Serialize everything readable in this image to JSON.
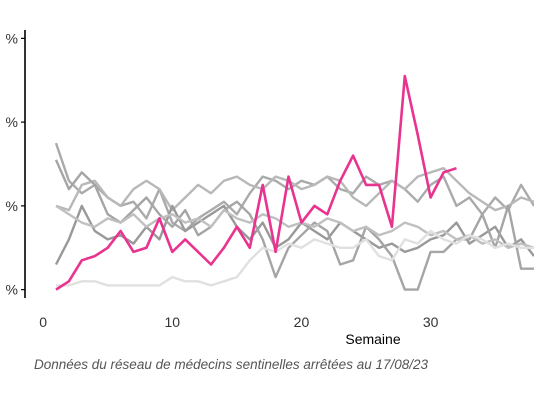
{
  "chart_data": {
    "type": "line",
    "title": "",
    "xlabel": "Semaine",
    "ylabel": "",
    "xlim": [
      -1.4,
      38
    ],
    "ylim": [
      -0.2,
      6.2
    ],
    "x_ticks": [
      0,
      10,
      20,
      30
    ],
    "y_ticks": [
      0,
      2,
      4,
      6
    ],
    "y_tick_labels": [
      "%",
      "%",
      "%",
      "%"
    ],
    "series": [
      {
        "color": "#aaaaaa",
        "x": [
          1,
          2,
          3,
          4,
          5,
          6,
          7,
          8,
          9,
          10,
          11,
          12,
          13,
          14,
          15,
          16,
          17,
          18,
          19,
          20,
          21,
          22,
          23,
          24,
          25,
          26,
          27,
          28,
          29,
          30,
          31,
          32,
          33,
          34,
          35,
          36,
          37,
          38
        ],
        "y": [
          3.5,
          2.6,
          2.3,
          2.5,
          2.2,
          2.0,
          2.1,
          1.7,
          2.4,
          1.6,
          1.4,
          1.7,
          1.9,
          2.1,
          1.8,
          2.3,
          2.7,
          2.6,
          2.4,
          2.6,
          2.5,
          2.7,
          2.4,
          2.3,
          2.7,
          2.5,
          2.6,
          2.4,
          2.1,
          2.5,
          2.7,
          2.0,
          2.2,
          1.8,
          2.2,
          1.9,
          2.5,
          2.0
        ]
      },
      {
        "color": "#b8b8b8",
        "x": [
          1,
          2,
          3,
          4,
          5,
          6,
          7,
          8,
          9,
          10,
          11,
          12,
          13,
          14,
          15,
          16,
          17,
          18,
          19,
          20,
          21,
          22,
          23,
          24,
          25,
          26,
          27,
          28,
          29,
          30,
          31,
          32,
          33,
          34,
          35,
          36,
          37,
          38
        ],
        "y": [
          2.0,
          1.9,
          2.5,
          2.6,
          2.2,
          2.0,
          2.4,
          2.6,
          2.4,
          1.9,
          2.2,
          2.5,
          2.3,
          2.6,
          2.7,
          2.5,
          2.4,
          2.7,
          2.6,
          2.4,
          2.5,
          2.7,
          2.6,
          2.2,
          2.0,
          2.3,
          2.6,
          2.4,
          2.7,
          2.8,
          2.9,
          2.6,
          2.3,
          2.1,
          1.9,
          2.0,
          2.2,
          2.1
        ]
      },
      {
        "color": "#999999",
        "x": [
          1,
          2,
          3,
          4,
          5,
          6,
          7,
          8,
          9,
          10,
          11,
          12,
          13,
          14,
          15,
          16,
          17,
          18,
          19,
          20,
          21,
          22,
          23,
          24,
          25,
          26,
          27,
          28,
          29,
          30,
          31,
          32,
          33,
          34,
          35,
          36,
          37,
          38
        ],
        "y": [
          0.6,
          1.2,
          2.0,
          1.4,
          1.2,
          1.3,
          1.1,
          1.5,
          1.2,
          2.0,
          1.4,
          1.6,
          1.8,
          2.0,
          1.5,
          1.2,
          1.6,
          1.0,
          1.2,
          1.6,
          1.4,
          1.2,
          1.6,
          1.4,
          1.2,
          1.0,
          1.1,
          0.9,
          1.0,
          1.2,
          1.3,
          1.6,
          1.1,
          1.3,
          1.5,
          1.0,
          1.2,
          0.8
        ]
      },
      {
        "color": "#a5a5a5",
        "x": [
          1,
          2,
          3,
          4,
          5,
          6,
          7,
          8,
          9,
          10,
          11,
          12,
          13,
          14,
          15,
          16,
          17,
          18,
          19,
          20,
          21,
          22,
          23,
          24,
          25,
          26,
          27,
          28,
          29,
          30,
          31,
          32,
          33,
          34,
          35,
          36,
          37,
          38
        ],
        "y": [
          3.1,
          2.4,
          2.8,
          2.5,
          1.8,
          1.6,
          1.9,
          2.2,
          1.8,
          1.5,
          1.9,
          1.3,
          1.5,
          1.9,
          2.1,
          1.8,
          1.2,
          0.3,
          1.0,
          1.3,
          1.6,
          1.4,
          0.6,
          0.7,
          1.5,
          1.2,
          0.8,
          0.0,
          0.0,
          0.9,
          0.9,
          1.2,
          1.2,
          1.8,
          1.0,
          2.0,
          0.5,
          0.5
        ]
      },
      {
        "color": "#c0c0c0",
        "x": [
          1,
          2,
          3,
          4,
          5,
          6,
          7,
          8,
          9,
          10,
          11,
          12,
          13,
          14,
          15,
          16,
          17,
          18,
          19,
          20,
          21,
          22,
          23,
          24,
          25,
          26,
          27,
          28,
          29,
          30,
          31,
          32,
          33,
          34,
          35,
          36,
          37,
          38
        ],
        "y": [
          2.0,
          1.8,
          1.6,
          1.5,
          1.7,
          1.6,
          1.8,
          1.5,
          1.7,
          1.8,
          1.6,
          1.7,
          1.5,
          1.9,
          1.7,
          1.6,
          1.8,
          1.7,
          1.5,
          1.6,
          1.5,
          1.7,
          1.6,
          1.4,
          1.5,
          1.3,
          1.4,
          1.6,
          1.5,
          1.3,
          1.4,
          1.2,
          1.3,
          1.1,
          1.2,
          1.0,
          1.1,
          1.0
        ]
      },
      {
        "color": "#e0e0e0",
        "x": [
          1,
          2,
          3,
          4,
          5,
          6,
          7,
          8,
          9,
          10,
          11,
          12,
          13,
          14,
          15,
          16,
          17,
          18,
          19,
          20,
          21,
          22,
          23,
          24,
          25,
          26,
          27,
          28,
          29,
          30,
          31,
          32,
          33,
          34,
          35,
          36,
          37,
          38
        ],
        "y": [
          0.1,
          0.1,
          0.2,
          0.2,
          0.1,
          0.1,
          0.1,
          0.1,
          0.1,
          0.3,
          0.2,
          0.2,
          0.1,
          0.2,
          0.3,
          0.7,
          1.0,
          0.9,
          1.1,
          1.0,
          1.2,
          1.1,
          1.0,
          1.0,
          1.2,
          0.8,
          0.7,
          1.2,
          1.1,
          1.4,
          1.2,
          1.1,
          1.3,
          1.2,
          1.0,
          1.1,
          1.0,
          1.0
        ]
      },
      {
        "color": "#e8338f",
        "x": [
          1,
          2,
          3,
          4,
          5,
          6,
          7,
          8,
          9,
          10,
          11,
          12,
          13,
          14,
          15,
          16,
          17,
          18,
          19,
          20,
          21,
          22,
          23,
          24,
          25,
          26,
          27,
          28,
          29,
          30,
          31,
          32
        ],
        "y": [
          0.0,
          0.2,
          0.7,
          0.8,
          1.0,
          1.4,
          0.9,
          1.0,
          1.7,
          0.9,
          1.2,
          0.9,
          0.6,
          1.0,
          1.5,
          1.0,
          2.5,
          0.9,
          2.7,
          1.6,
          2.0,
          1.8,
          2.6,
          3.2,
          2.5,
          2.5,
          1.5,
          5.1,
          3.7,
          2.2,
          2.8,
          2.9
        ]
      }
    ]
  },
  "footnote": "Données du réseau de médecins sentinelles arrêtées au  17/08/23"
}
